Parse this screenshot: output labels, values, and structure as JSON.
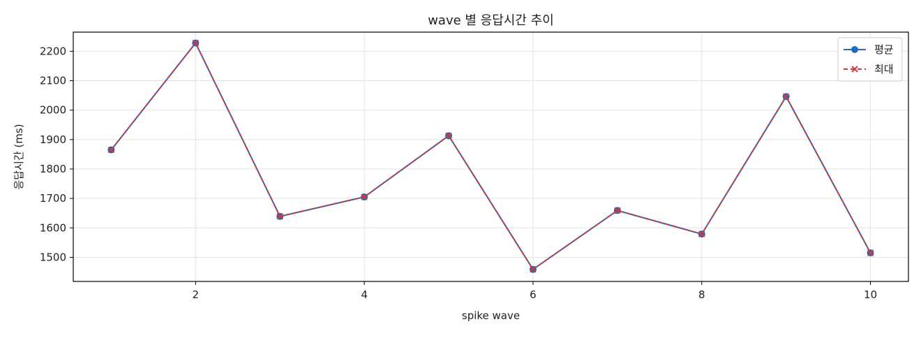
{
  "chart_data": {
    "type": "line",
    "title": "wave 별 응답시간 추이",
    "xlabel": "spike wave",
    "ylabel": "응답시간 (ms)",
    "x": [
      1,
      2,
      3,
      4,
      5,
      6,
      7,
      8,
      9,
      10
    ],
    "xlim": [
      0.55,
      10.45
    ],
    "ylim": [
      1418,
      2265
    ],
    "xticks": [
      2,
      4,
      6,
      8,
      10
    ],
    "yticks": [
      1500,
      1600,
      1700,
      1800,
      1900,
      2000,
      2100,
      2200
    ],
    "grid": true,
    "legend_position": "top-right",
    "series": [
      {
        "name": "평균",
        "values": [
          1865,
          2228,
          1639,
          1705,
          1913,
          1459,
          1659,
          1579,
          2046,
          1515
        ],
        "color": "#1f6bbf",
        "line_style": "solid",
        "marker": "circle"
      },
      {
        "name": "최대",
        "values": [
          1865,
          2228,
          1639,
          1705,
          1913,
          1459,
          1659,
          1579,
          2046,
          1515
        ],
        "color": "#d03a3a",
        "line_style": "dashed",
        "marker": "x"
      }
    ]
  }
}
